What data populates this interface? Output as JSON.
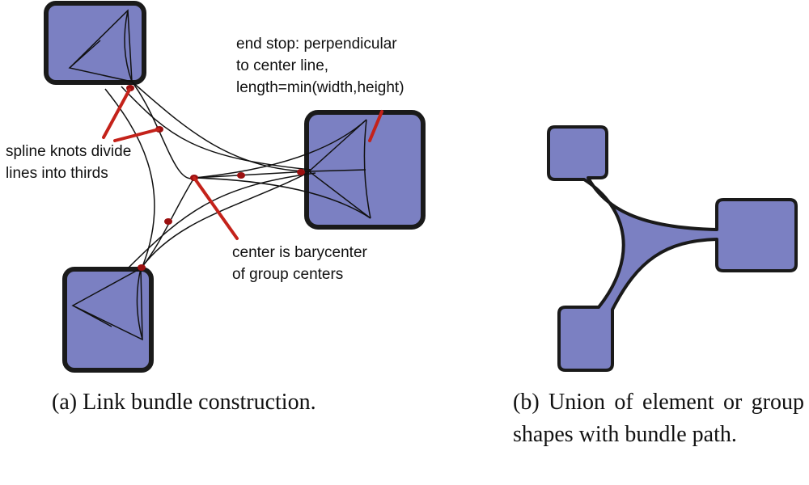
{
  "annotations": {
    "end_stop": [
      "end stop: perpendicular",
      "to center line,",
      "length=min(width,height)"
    ],
    "spline_knots": [
      "spline knots divide",
      "lines into thirds"
    ],
    "center": [
      "center is barycenter",
      "of group centers"
    ]
  },
  "captions": {
    "a": "(a)  Link bundle construction.",
    "b": "(b)  Union of element or group shapes with bundle path."
  },
  "colors": {
    "group_fill": "#7b80c2",
    "outline": "#1a1a1a",
    "pointer": "#c4221a",
    "knot": "#9b1010"
  }
}
